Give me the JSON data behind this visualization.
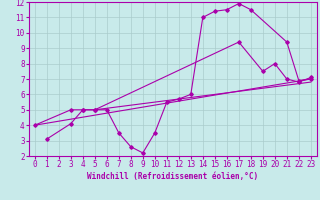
{
  "title": "",
  "xlabel": "Windchill (Refroidissement éolien,°C)",
  "ylabel": "",
  "bg_color": "#c8eaea",
  "line_color": "#aa00aa",
  "xlim": [
    -0.5,
    23.5
  ],
  "ylim": [
    2,
    12
  ],
  "xticks": [
    0,
    1,
    2,
    3,
    4,
    5,
    6,
    7,
    8,
    9,
    10,
    11,
    12,
    13,
    14,
    15,
    16,
    17,
    18,
    19,
    20,
    21,
    22,
    23
  ],
  "yticks": [
    2,
    3,
    4,
    5,
    6,
    7,
    8,
    9,
    10,
    11,
    12
  ],
  "grid_color": "#aacccc",
  "series": [
    {
      "x": [
        1,
        3,
        4,
        5,
        6,
        7,
        8,
        9,
        10,
        11,
        12,
        13,
        14,
        15,
        16,
        17,
        18,
        21,
        22,
        23
      ],
      "y": [
        3.1,
        4.1,
        5.0,
        5.0,
        5.0,
        3.5,
        2.6,
        2.2,
        3.5,
        5.5,
        5.7,
        6.0,
        11.0,
        11.4,
        11.5,
        11.9,
        11.5,
        9.4,
        6.9,
        7.0
      ],
      "marker": true
    },
    {
      "x": [
        0,
        3,
        4,
        5,
        17,
        19,
        20,
        21,
        22,
        23
      ],
      "y": [
        4.0,
        5.0,
        5.0,
        5.0,
        9.4,
        7.5,
        8.0,
        7.0,
        6.8,
        7.1
      ],
      "marker": true
    },
    {
      "x": [
        0,
        23
      ],
      "y": [
        4.0,
        7.0
      ],
      "marker": false
    },
    {
      "x": [
        5,
        23
      ],
      "y": [
        5.0,
        6.8
      ],
      "marker": false
    }
  ]
}
